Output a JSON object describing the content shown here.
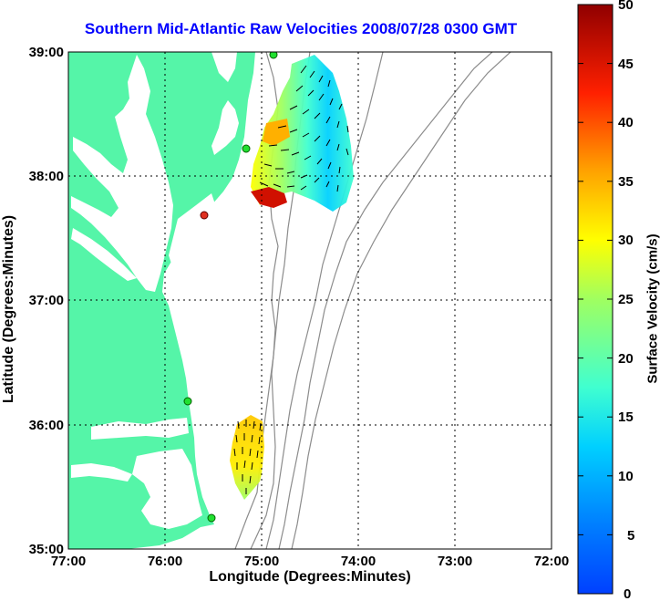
{
  "title": "Southern Mid-Atlantic Raw Velocities 2008/07/28 0300 GMT",
  "xaxis": {
    "label": "Longitude (Degrees:Minutes)",
    "ticks": [
      "77:00",
      "76:00",
      "75:00",
      "74:00",
      "73:00",
      "72:00"
    ]
  },
  "yaxis": {
    "label": "Latitude (Degrees:Minutes)",
    "ticks": [
      "39:00",
      "38:00",
      "37:00",
      "36:00",
      "35:00"
    ]
  },
  "colorbar": {
    "label": "Surface Velocity (cm/s)",
    "ticks": [
      "50",
      "45",
      "40",
      "35",
      "30",
      "25",
      "20",
      "15",
      "10",
      "5",
      "0"
    ],
    "range": [
      0,
      50
    ]
  },
  "colors": {
    "land": "#55f5a8",
    "bathymetry": "#8c8c8c",
    "arrows": "#000000",
    "grid": "#000000"
  },
  "map": {
    "lon_range": [
      -77,
      -72
    ],
    "lat_range": [
      35,
      39
    ]
  }
}
